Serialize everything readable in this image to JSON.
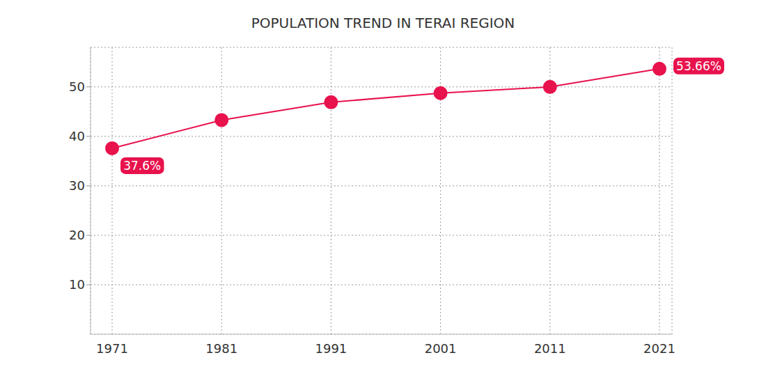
{
  "chart_data": {
    "type": "line",
    "title": "POPULATION TREND IN TERAI REGION",
    "categories": [
      "1971",
      "1981",
      "1991",
      "2001",
      "2011",
      "2021"
    ],
    "values": [
      37.6,
      43.3,
      46.9,
      48.75,
      50.0,
      53.66
    ],
    "value_labels": [
      "37.6%",
      null,
      null,
      null,
      null,
      "53.66%"
    ],
    "data_labels": true,
    "color": "#e8124c",
    "marker": "circle",
    "ylim": [
      0,
      58
    ],
    "yticks": [
      10,
      20,
      30,
      40,
      50
    ],
    "grid": true
  }
}
